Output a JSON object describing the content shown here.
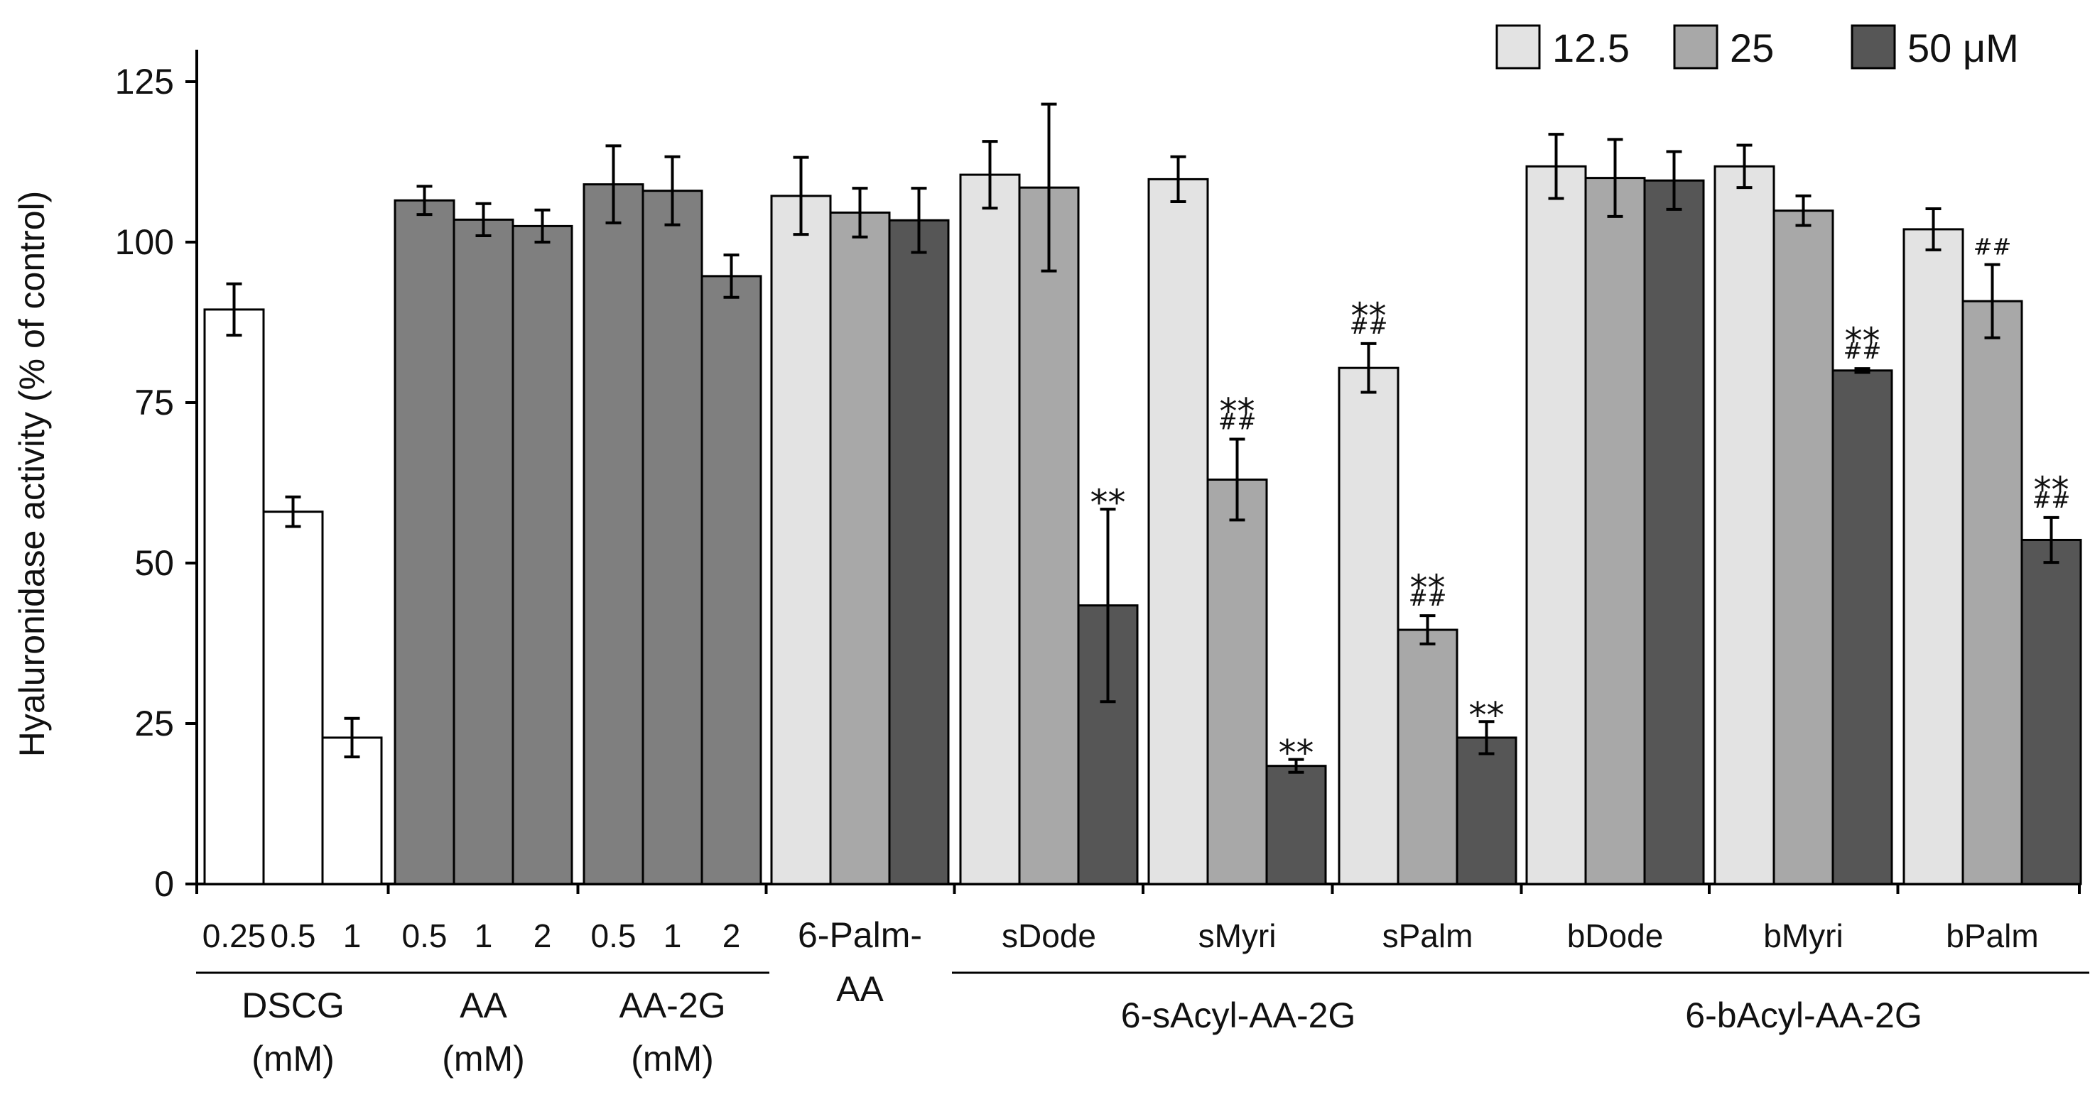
{
  "chart_data": {
    "type": "bar",
    "ylabel": "Hyaluronidase  activity  (% of control)",
    "ylim": [
      0,
      125
    ],
    "yticks": [
      "0",
      "25",
      "50",
      "75",
      "100",
      "125"
    ],
    "legend": {
      "placement": "top-right",
      "entries": [
        {
          "label": "12.5",
          "color": "#e3e3e3"
        },
        {
          "label": "25",
          "color": "#a8a8a8"
        },
        {
          "label": "50 μM",
          "color": "#565656"
        }
      ]
    },
    "colors": {
      "white": "#ffffff",
      "c12": "#e3e3e3",
      "c25": "#a8a8a8",
      "c50": "#565656",
      "mid": "#7f7f7f"
    },
    "groups": [
      {
        "name": "DSCG",
        "label_lines": [
          "DSCG",
          "(mM)"
        ],
        "bars": [
          {
            "category": "0.25",
            "value": 89.5,
            "error": 4,
            "fill": "white"
          },
          {
            "category": "0.5",
            "value": 58,
            "error": 2.3,
            "fill": "white"
          },
          {
            "category": "1",
            "value": 22.8,
            "error": 3,
            "fill": "white"
          }
        ]
      },
      {
        "name": "AA",
        "label_lines": [
          "AA",
          "(mM)"
        ],
        "bars": [
          {
            "category": "0.5",
            "value": 106.5,
            "error": 2.2,
            "fill": "mid"
          },
          {
            "category": "1",
            "value": 103.5,
            "error": 2.5,
            "fill": "mid"
          },
          {
            "category": "2",
            "value": 102.5,
            "error": 2.5,
            "fill": "mid"
          }
        ]
      },
      {
        "name": "AA-2G",
        "label_lines": [
          "AA-2G",
          "(mM)"
        ],
        "bars": [
          {
            "category": "0.5",
            "value": 109,
            "error": 6,
            "fill": "mid"
          },
          {
            "category": "1",
            "value": 108,
            "error": 5.3,
            "fill": "mid"
          },
          {
            "category": "2",
            "value": 94.7,
            "error": 3.3,
            "fill": "mid"
          }
        ]
      },
      {
        "name": "6-Palm-AA",
        "label_lines": [],
        "bars": [
          {
            "category": "",
            "value": 107.2,
            "error": 6,
            "fill": "c12"
          },
          {
            "category": "",
            "value": 104.6,
            "error": 3.8,
            "fill": "c25"
          },
          {
            "category": "",
            "value": 103.4,
            "error": 5,
            "fill": "c50"
          }
        ]
      },
      {
        "name": "sDode",
        "bars": [
          {
            "value": 110.5,
            "error": 5.2,
            "fill": "c12"
          },
          {
            "value": 108.5,
            "error": 13,
            "fill": "c25"
          },
          {
            "value": 43.4,
            "error": 15,
            "fill": "c50",
            "sig": "**"
          }
        ]
      },
      {
        "name": "sMyri",
        "bars": [
          {
            "value": 109.8,
            "error": 3.5,
            "fill": "c12"
          },
          {
            "value": 63,
            "error": 6.3,
            "fill": "c25",
            "sig": "**",
            "hash": "##"
          },
          {
            "value": 18.4,
            "error": 1,
            "fill": "c50",
            "sig": "**"
          }
        ]
      },
      {
        "name": "sPalm",
        "bars": [
          {
            "value": 80.4,
            "error": 3.8,
            "fill": "c12",
            "sig": "**",
            "hash": "##"
          },
          {
            "value": 39.6,
            "error": 2.2,
            "fill": "c25",
            "sig": "**",
            "hash": "##"
          },
          {
            "value": 22.8,
            "error": 2.5,
            "fill": "c50",
            "sig": "**"
          }
        ]
      },
      {
        "name": "bDode",
        "bars": [
          {
            "value": 111.8,
            "error": 5,
            "fill": "c12"
          },
          {
            "value": 110,
            "error": 6,
            "fill": "c25"
          },
          {
            "value": 109.6,
            "error": 4.5,
            "fill": "c50"
          }
        ]
      },
      {
        "name": "bMyri",
        "bars": [
          {
            "value": 111.8,
            "error": 3.3,
            "fill": "c12"
          },
          {
            "value": 104.9,
            "error": 2.3,
            "fill": "c25"
          },
          {
            "value": 80,
            "error": 0.3,
            "fill": "c50",
            "sig": "**",
            "hash": "##"
          }
        ]
      },
      {
        "name": "bPalm",
        "bars": [
          {
            "value": 102,
            "error": 3.2,
            "fill": "c12"
          },
          {
            "value": 90.8,
            "error": 5.7,
            "fill": "c25",
            "hash": "##"
          },
          {
            "value": 53.6,
            "error": 3.5,
            "fill": "c50",
            "sig": "**",
            "hash": "##"
          }
        ]
      }
    ],
    "category_labels": [
      {
        "text": "0.25",
        "bar": [
          0,
          0
        ]
      },
      {
        "text": "0.5",
        "bar": [
          0,
          1
        ]
      },
      {
        "text": "1",
        "bar": [
          0,
          2
        ]
      },
      {
        "text": "0.5",
        "bar": [
          1,
          0
        ]
      },
      {
        "text": "1",
        "bar": [
          1,
          1
        ]
      },
      {
        "text": "2",
        "bar": [
          1,
          2
        ]
      },
      {
        "text": "0.5",
        "bar": [
          2,
          0
        ]
      },
      {
        "text": "1",
        "bar": [
          2,
          1
        ]
      },
      {
        "text": "2",
        "bar": [
          2,
          2
        ]
      },
      {
        "text": "sDode",
        "group": 4
      },
      {
        "text": "sMyri",
        "group": 5
      },
      {
        "text": "sPalm",
        "group": 6
      },
      {
        "text": "bDode",
        "group": 7
      },
      {
        "text": "bMyri",
        "group": 8
      },
      {
        "text": "bPalm",
        "group": 9
      }
    ],
    "palm_label_lines": [
      "6-Palm-",
      "AA"
    ],
    "super_groups": [
      {
        "label": "6-sAcyl-AA-2G",
        "groups": [
          4,
          6
        ]
      },
      {
        "label": "6-bAcyl-AA-2G",
        "groups": [
          7,
          9
        ]
      }
    ]
  }
}
